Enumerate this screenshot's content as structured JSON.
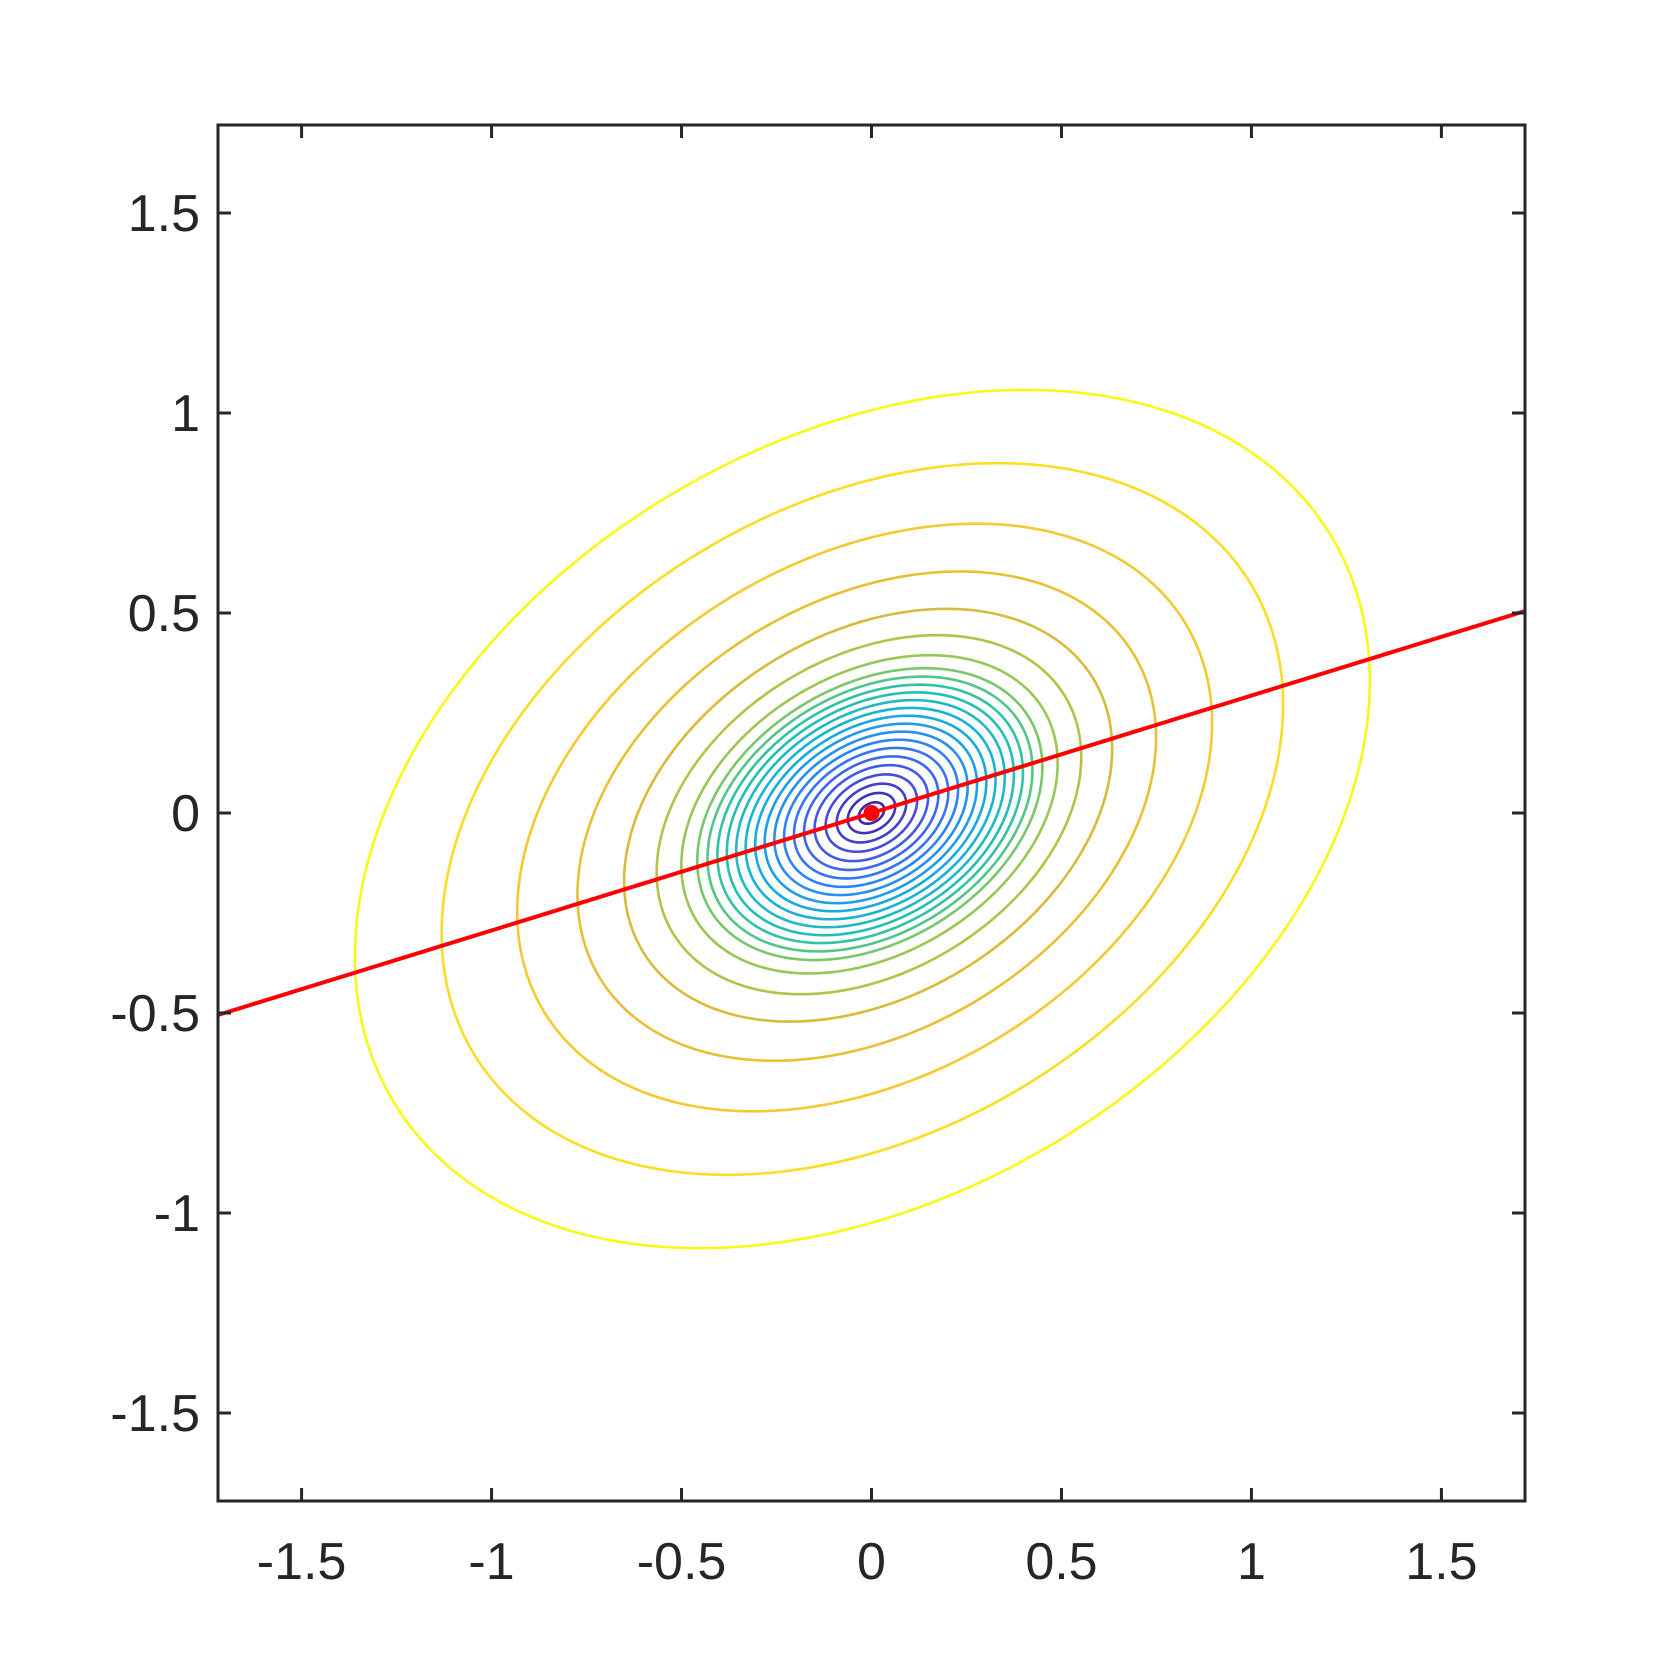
{
  "chart_data": {
    "type": "contour",
    "title": "",
    "xlabel": "",
    "ylabel": "",
    "xlim": [
      -1.72,
      1.72
    ],
    "ylim": [
      -1.72,
      1.72
    ],
    "grid": false,
    "x_ticks": [
      -1.5,
      -1,
      -0.5,
      0,
      0.5,
      1,
      1.5
    ],
    "y_ticks": [
      -1.5,
      -1,
      -0.5,
      0,
      0.5,
      1,
      1.5
    ],
    "x_tick_labels": [
      "-1.5",
      "-1",
      "-0.5",
      "0",
      "0.5",
      "1",
      "1.5"
    ],
    "y_tick_labels": [
      "-1.5",
      "-1",
      "-0.5",
      "0",
      "0.5",
      "1",
      "1.5"
    ],
    "contours": {
      "center": [
        0,
        0
      ],
      "count": 24,
      "colormap": "parula",
      "levels": [
        0.001,
        0.0035,
        0.0075,
        0.013,
        0.02,
        0.028,
        0.037,
        0.047,
        0.058,
        0.07,
        0.083,
        0.097,
        0.112,
        0.128,
        0.145,
        0.164,
        0.185,
        0.22,
        0.28,
        0.37,
        0.52,
        0.75,
        1.1,
        1.6
      ]
    },
    "line": {
      "color": "#ff0000",
      "points": [
        [
          -1.72,
          -0.505
        ],
        [
          1.72,
          0.505
        ]
      ]
    },
    "marker": {
      "color": "#ff0000",
      "point": [
        0,
        0
      ]
    },
    "colors": {
      "axes": "#262626",
      "highlight": "#ff0000"
    }
  }
}
